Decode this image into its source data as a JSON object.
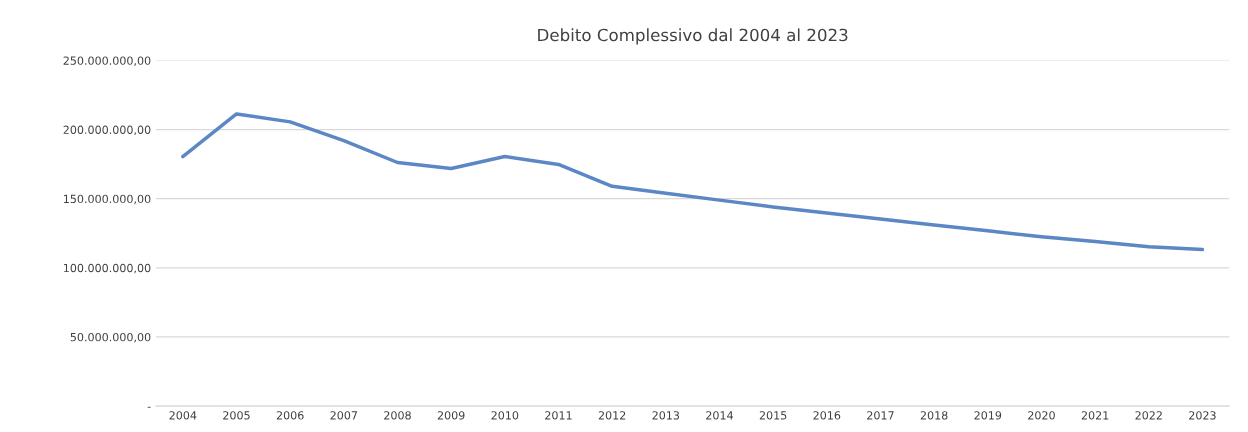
{
  "chart_data": {
    "type": "line",
    "title": "Debito Complessivo dal 2004 al 2023",
    "categories": [
      "2004",
      "2005",
      "2006",
      "2007",
      "2008",
      "2009",
      "2010",
      "2011",
      "2012",
      "2013",
      "2014",
      "2015",
      "2016",
      "2017",
      "2018",
      "2019",
      "2020",
      "2021",
      "2022",
      "2023"
    ],
    "series": [
      {
        "color": "#5b87c5",
        "values": [
          180500000,
          211300000,
          205600000,
          192000000,
          176200000,
          171900000,
          180500000,
          174800000,
          159000000,
          154000000,
          149000000,
          144000000,
          139700000,
          135400000,
          131000000,
          126800000,
          122500000,
          119000000,
          115300000,
          113200000
        ]
      }
    ],
    "ylim": [
      0,
      250000000
    ],
    "yticks": [
      {
        "value": 0,
        "label": "-"
      },
      {
        "value": 50000000,
        "label": "50.000.000,00"
      },
      {
        "value": 100000000,
        "label": "100.000.000,00"
      },
      {
        "value": 150000000,
        "label": "150.000.000,00"
      },
      {
        "value": 200000000,
        "label": "200.000.000,00"
      },
      {
        "value": 250000000,
        "label": "250.000.000,00"
      }
    ],
    "grid": "y",
    "legend": false,
    "marker": "none",
    "line_style": "solid"
  }
}
